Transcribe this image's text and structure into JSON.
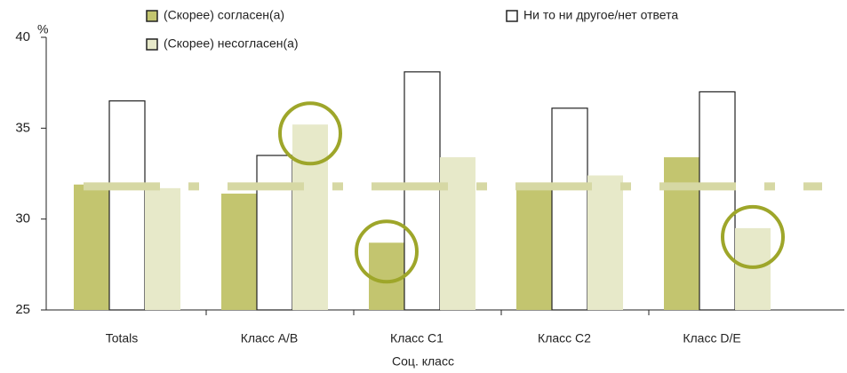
{
  "chart_data": {
    "type": "bar",
    "unit_label": "%",
    "x_label": "Соц. класс",
    "categories": [
      "Totals",
      "Класс A/B",
      "Класс C1",
      "Класс C2",
      "Класс D/E"
    ],
    "series": [
      {
        "name": "(Скорее) согласен(а)",
        "color": "#c3c56f",
        "values": [
          31.9,
          31.4,
          28.7,
          31.6,
          33.4
        ]
      },
      {
        "name": "Ни то ни другое/нет ответа",
        "color": "#ffffff",
        "values": [
          36.5,
          33.5,
          38.1,
          36.1,
          37.0
        ]
      },
      {
        "name": "(Скорее) несогласен(а)",
        "color": "#e7e9c9",
        "values": [
          31.7,
          35.2,
          33.4,
          32.4,
          29.5
        ]
      }
    ],
    "reference_line": 31.8,
    "reference_color": "#d6d8a4",
    "ylim": [
      25,
      40
    ],
    "yticks": [
      25,
      30,
      35,
      40
    ],
    "highlight_color": "#9ea62a"
  }
}
